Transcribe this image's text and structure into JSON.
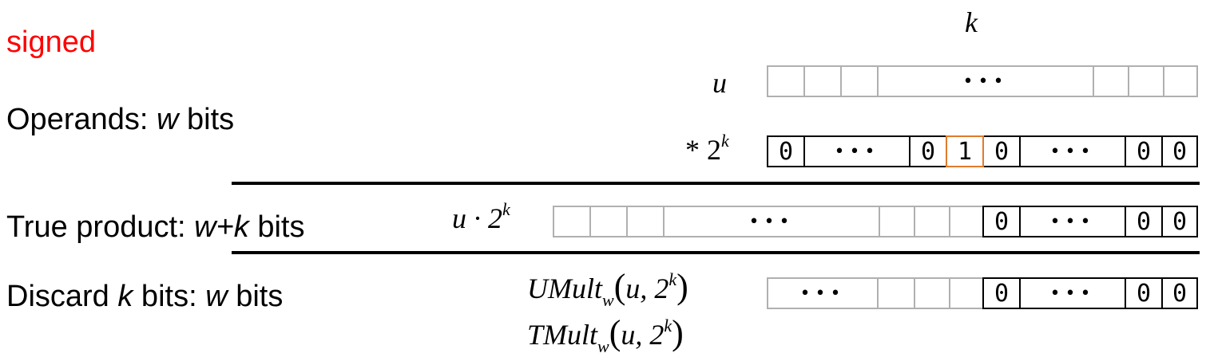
{
  "header": {
    "mode_label": "signed",
    "k_label": "k"
  },
  "labels": {
    "operands_prefix": "Operands: ",
    "operands_var": "w",
    "operands_suffix": " bits",
    "true_prefix": "True product: ",
    "true_var": "w+k",
    "true_suffix": "  bits",
    "discard_prefix": "Discard ",
    "discard_var_k": "k",
    "discard_mid": "  bits: ",
    "discard_var_w": "w",
    "discard_suffix": " bits"
  },
  "row_labels": {
    "u": "u",
    "times_prefix": "* 2",
    "times_exp": "k",
    "product_base": "u · 2",
    "product_exp": "k",
    "umult_name": "UMult",
    "umult_sub": "w",
    "umult_args": "u, 2",
    "umult_exp": "k",
    "tmult_name": "TMult",
    "tmult_sub": "w",
    "tmult_args": "u, 2",
    "tmult_exp": "k"
  },
  "cells": {
    "dots": "•••",
    "zero": "0",
    "one": "1"
  },
  "colors": {
    "accent_red": "#ff0000",
    "highlight_orange": "#e07b2a",
    "gray_border": "#b0b0b0"
  }
}
